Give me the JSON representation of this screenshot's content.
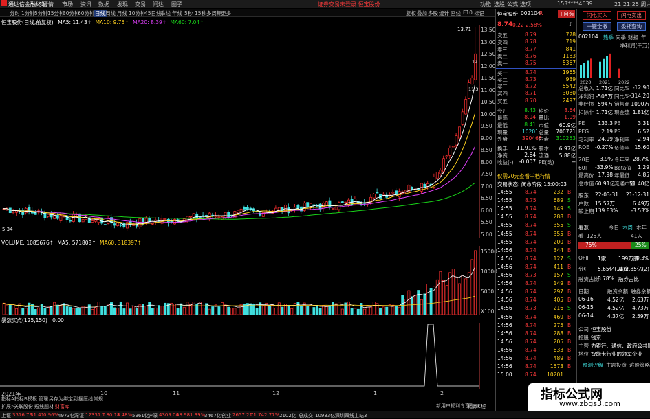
{
  "titlebar": {
    "app": "通达信金融终端",
    "menus": [
      "行情",
      "市场",
      "资讯",
      "数据",
      "发现",
      "交易",
      "问达",
      "圈子"
    ],
    "notice": "证券交易未登录  恒宝股份",
    "right_items": [
      "功能",
      "选股",
      "公式",
      "选项"
    ],
    "phone": "153****4639",
    "time": "21:21:25 周六"
  },
  "periodbar": {
    "items": [
      "分时",
      "1分钟",
      "5分钟",
      "15分钟",
      "30分钟",
      "60分钟",
      "日线",
      "周线",
      "月线",
      "10分钟",
      "45日线",
      "季线",
      "年线",
      "5秒",
      "15秒",
      "多周期",
      "更多"
    ],
    "active": "日线",
    "right_items": [
      "复权",
      "叠加",
      "多股",
      "统计",
      "画线",
      "F10",
      "标记"
    ]
  },
  "main_legend": {
    "name": "恒宝股份(日线,前复权)",
    "ma5": "MA5: 11.43↑",
    "ma10": "MA10: 9.75↑",
    "ma20": "MA20: 8.39↑",
    "ma60": "MA60: 7.04↑"
  },
  "vol_legend": {
    "vol": "VOLUME: 1085676↑",
    "ma5": "MA5: 571808↑",
    "ma60": "MA60: 318397↑"
  },
  "ind_legend": "暴涨买点(125,150) : 0.00",
  "price_axis": [
    "13.50",
    "13.00",
    "12.50",
    "12.00",
    "11.50",
    "11.00",
    "10.50",
    "10.00",
    "9.50",
    "9.00",
    "8.50",
    "8.00",
    "7.50",
    "7.00",
    "6.50",
    "6.00",
    "5.50",
    "5.00"
  ],
  "vol_axis": [
    "15000",
    "10000",
    "5000",
    "X100"
  ],
  "date_axis": [
    "2021年",
    "10",
    "11",
    "12",
    "1",
    "2"
  ],
  "price_labels": {
    "high": "13.71",
    "low": "5.34",
    "right_a": "12",
    "right_b": "11.33"
  },
  "chart_data": {
    "type": "candlestick",
    "title": "恒宝股份(日线,前复权)",
    "ylim": [
      5.0,
      13.8
    ],
    "high": 13.71,
    "low": 5.34,
    "ma": {
      "MA5": 11.43,
      "MA10": 9.75,
      "MA20": 8.39,
      "MA60": 7.04
    },
    "volume": {
      "latest": 1085676,
      "MA5": 571808,
      "MA60": 318397
    },
    "colors": {
      "up": "#ff3030",
      "down": "#40e0e0",
      "ma5": "#ffffff",
      "ma10": "#ffd21f",
      "ma20": "#e040fb",
      "ma60": "#19d419"
    }
  },
  "quote": {
    "name": "恒宝股份",
    "code": "002104",
    "badge": "R",
    "fav": "+自选",
    "price": "8.74",
    "change": "0.22",
    "pct": "2.58%",
    "sell": [
      {
        "label": "卖五",
        "price": "8.79",
        "vol": "778"
      },
      {
        "label": "卖四",
        "price": "8.78",
        "vol": "719"
      },
      {
        "label": "卖三",
        "price": "8.77",
        "vol": "841"
      },
      {
        "label": "卖二",
        "price": "8.76",
        "vol": "1183"
      },
      {
        "label": "卖一",
        "price": "8.75",
        "vol": "5367"
      }
    ],
    "buy": [
      {
        "label": "买一",
        "price": "8.74",
        "vol": "1965"
      },
      {
        "label": "买二",
        "price": "8.73",
        "vol": "939"
      },
      {
        "label": "买三",
        "price": "8.72",
        "vol": "5542"
      },
      {
        "label": "买四",
        "price": "8.71",
        "vol": "3080"
      },
      {
        "label": "买五",
        "price": "8.70",
        "vol": "2497"
      }
    ],
    "stats": [
      {
        "l1": "今开",
        "v1": "8.43",
        "l2": "均价",
        "v2": "8.64"
      },
      {
        "l1": "最高",
        "v1": "8.94",
        "l2": "量比",
        "v2": "1.09"
      },
      {
        "l1": "最低",
        "v1": "8.41",
        "l2": "市值",
        "v2": "60.9亿"
      },
      {
        "l1": "现量",
        "v1": "10201",
        "l2": "总量",
        "v2": "700721"
      },
      {
        "l1": "外盘",
        "v1": "390468",
        "l2": "内盘",
        "v2": "310253"
      }
    ],
    "stats2": [
      {
        "l1": "换手",
        "v1": "11.91%",
        "l2": "股本",
        "v2": "6.97亿"
      },
      {
        "l1": "净资",
        "v1": "2.64",
        "l2": "流通",
        "v2": "5.88亿"
      },
      {
        "l1": "收益(-)",
        "v1": "-0.007",
        "l2": "PE(动)",
        "v2": "--"
      }
    ],
    "promo": "仅需20元查看千档行情",
    "trade_status": "交易状态: 闭市阶段 15:00:03",
    "ticks": [
      {
        "t": "14:55",
        "p": "8.74",
        "v": "232",
        "s": "B"
      },
      {
        "t": "14:55",
        "p": "8.75",
        "v": "689",
        "s": "S"
      },
      {
        "t": "14:55",
        "p": "8.74",
        "v": "149",
        "s": "S"
      },
      {
        "t": "14:55",
        "p": "8.74",
        "v": "288",
        "s": "B"
      },
      {
        "t": "14:55",
        "p": "8.74",
        "v": "355",
        "s": "S"
      },
      {
        "t": "14:55",
        "p": "8.74",
        "v": "355",
        "s": "B"
      },
      {
        "t": "14:55",
        "p": "8.74",
        "v": "200",
        "s": "B"
      },
      {
        "t": "14:56",
        "p": "8.74",
        "v": "344",
        "s": "B"
      },
      {
        "t": "14:56",
        "p": "8.74",
        "v": "127",
        "s": "S"
      },
      {
        "t": "14:56",
        "p": "8.74",
        "v": "411",
        "s": "B"
      },
      {
        "t": "14:56",
        "p": "8.73",
        "v": "157",
        "s": "S"
      },
      {
        "t": "14:56",
        "p": "8.74",
        "v": "149",
        "s": "B"
      },
      {
        "t": "14:56",
        "p": "8.74",
        "v": "297",
        "s": "B"
      },
      {
        "t": "14:56",
        "p": "8.74",
        "v": "405",
        "s": "B"
      },
      {
        "t": "14:56",
        "p": "8.73",
        "v": "216",
        "s": "S"
      },
      {
        "t": "14:56",
        "p": "8.74",
        "v": "469",
        "s": "B"
      },
      {
        "t": "14:56",
        "p": "8.74",
        "v": "275",
        "s": "B"
      },
      {
        "t": "14:56",
        "p": "8.74",
        "v": "288",
        "s": "B"
      },
      {
        "t": "14:56",
        "p": "8.74",
        "v": "205",
        "s": "B"
      },
      {
        "t": "14:56",
        "p": "8.74",
        "v": "633",
        "s": "B"
      },
      {
        "t": "14:56",
        "p": "8.74",
        "v": "489",
        "s": "B"
      },
      {
        "t": "14:56",
        "p": "8.74",
        "v": "1573",
        "s": "B"
      },
      {
        "t": "15:00",
        "p": "8.74",
        "v": "10201",
        "s": ""
      }
    ]
  },
  "sidepanel": {
    "btn_flash_buy": "闪电买入",
    "btn_flash_sell": "闪电卖出",
    "btn_one_key": "一键全撤",
    "btn_orders": "委托查询",
    "code": "002104",
    "tabs": [
      "热季",
      "同季",
      "财报",
      "年"
    ],
    "profit_label": "净利润(千万)",
    "bar_years": [
      "2020",
      "2021",
      "2022"
    ],
    "bar_values": [
      6.18,
      7.86,
      3.0
    ],
    "fin": [
      {
        "l1": "总收入",
        "v1": "1.71亿",
        "l2": "同比%",
        "v2": "-12.90"
      },
      {
        "l1": "净利润",
        "v1": "-505万",
        "l2": "同比%",
        "v2": "-314.20"
      },
      {
        "l1": "非经损",
        "v1": "594万",
        "l2": "销售商",
        "v2": "1090万"
      },
      {
        "l1": "扣除非",
        "v1": "1.71亿",
        "l2": "现金流",
        "v2": "1.81亿"
      },
      {
        "l1": "PE",
        "v1": "133.3",
        "l2": "PB",
        "v2": "3.31"
      },
      {
        "l1": "PEG",
        "v1": "2.19",
        "l2": "PS",
        "v2": "6.52"
      },
      {
        "l1": "毛利率",
        "v1": "24.99",
        "l2": "净利率",
        "v2": "-2.94"
      },
      {
        "l1": "ROE",
        "v1": "-0.27%",
        "l2": "负债率",
        "v2": "15.60"
      },
      {
        "l1": "20日",
        "v1": "3.9%",
        "l2": "今年来",
        "v2": "28.7%"
      },
      {
        "l1": "60日",
        "v1": "-33.9%",
        "l2": "Beta值",
        "v2": "1.29"
      },
      {
        "l1": "最高价",
        "v1": "17.98",
        "l2": "年最低",
        "v2": "4.85"
      },
      {
        "l1": "总市值",
        "v1": "60.91亿",
        "l2": "流通市值",
        "v2": "51.40亿"
      },
      {
        "l1": "股东",
        "v1": "22-03-31",
        "l2": "",
        "v2": "21-12-31"
      },
      {
        "l1": "户数",
        "v1": "15.57万",
        "l2": "",
        "v2": "6.49万"
      },
      {
        "l1": "较上期",
        "v1": "139.83%",
        "l2": "",
        "v2": "-3.53%"
      }
    ],
    "sentiment_label": "看涨",
    "sentiment_tabs": [
      "今日",
      "本周",
      "本年"
    ],
    "bull_count": "125人",
    "bear_count": "41人",
    "bull_pct": "75%",
    "bear_pct": "25%",
    "qfii": [
      {
        "l1": "QFII",
        "v1": "1家",
        "v2": "199万股",
        "v3": "0.3%"
      },
      {
        "l1": "分红",
        "v1": "5.65亿(11)",
        "v2": "募资",
        "v3": "2.85亿(2)"
      },
      {
        "l1": "融资占比",
        "v1": "8.78%",
        "v2": "融券占比",
        "v3": ""
      }
    ],
    "margin_header": [
      "日期",
      "融资余额",
      "融券余额"
    ],
    "margin": [
      {
        "d": "06-16",
        "a": "4.52亿",
        "b": "2.63万"
      },
      {
        "d": "06-15",
        "a": "4.52亿",
        "b": "4.73万"
      },
      {
        "d": "06-14",
        "a": "4.37亿",
        "b": "2.59万"
      }
    ],
    "company": [
      {
        "l": "公司",
        "v": "恒宝股份"
      },
      {
        "l": "控股",
        "v": "钱京"
      },
      {
        "l": "主营",
        "v": "为银行、通信、政府公共服..."
      },
      {
        "l": "地位",
        "v": "智能卡行业的领军企业"
      }
    ],
    "links": [
      "预测评级",
      "主题投资",
      "这股策略"
    ]
  },
  "tabbar": [
    "扩展>",
    "关联股份",
    "短线题材",
    "财富库"
  ],
  "tabbar_left": [
    "指标A",
    "指标B",
    "模板",
    "管理",
    "另存为",
    "绑定到",
    "摆压线",
    "常规"
  ],
  "chartbottom": [
    "新用户福利专享",
    "图文F10",
    "相似K线"
  ],
  "bottombar": {
    "items": [
      {
        "name": "上证",
        "v": "3316.79",
        "c": "31.41",
        "p": "0.96%",
        "a": "4973亿"
      },
      {
        "name": "深证",
        "v": "12331.1",
        "c": "180.18",
        "p": "1.48%",
        "a": "5961亿"
      },
      {
        "name": "沪深",
        "v": "4309.04",
        "c": "58.98",
        "p": "1.39%",
        "a": "3467亿"
      },
      {
        "name": "创业",
        "v": "2657.21",
        "c": "71.74",
        "p": "2.77%",
        "a": "2102亿"
      }
    ],
    "tail": [
      "总成交",
      "10933亿",
      "深圳双线主站3"
    ]
  },
  "watermark": {
    "main": "指标公式网",
    "sub": "www.zbgs3.com"
  }
}
